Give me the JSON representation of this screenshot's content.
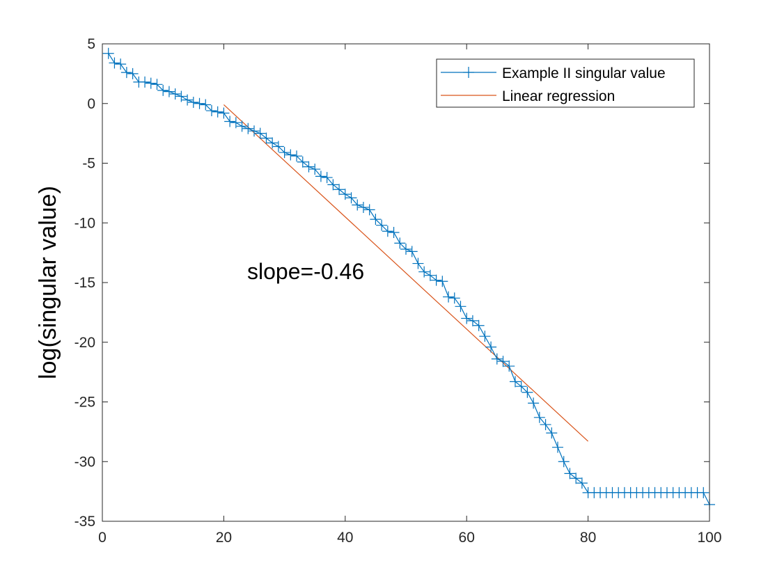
{
  "chart_data": {
    "type": "line",
    "title": "",
    "xlabel": "",
    "ylabel": "log(singular value)",
    "xlim": [
      0,
      100
    ],
    "ylim": [
      -35,
      5
    ],
    "xticks": [
      0,
      20,
      40,
      60,
      80,
      100
    ],
    "xtick_labels": [
      "0",
      "20",
      "40",
      "60",
      "80",
      "100"
    ],
    "yticks": [
      5,
      0,
      -5,
      -10,
      -15,
      -20,
      -25,
      -30,
      -35
    ],
    "ytick_labels": [
      "5",
      "0",
      "-5",
      "-10",
      "-15",
      "-20",
      "-25",
      "-30",
      "-35"
    ],
    "grid": false,
    "legend_position": "top-right",
    "annotation": {
      "text": "slope=-0.46",
      "x": 23.5,
      "y": -14.2
    },
    "series": [
      {
        "name": "Example II singular value",
        "color": "#0072BD",
        "marker": "+",
        "x": [
          1,
          2,
          3,
          4,
          5,
          6,
          7,
          8,
          9,
          10,
          11,
          12,
          13,
          14,
          15,
          16,
          17,
          18,
          19,
          20,
          21,
          22,
          23,
          24,
          25,
          26,
          27,
          28,
          29,
          30,
          31,
          32,
          33,
          34,
          35,
          36,
          37,
          38,
          39,
          40,
          41,
          42,
          43,
          44,
          45,
          46,
          47,
          48,
          49,
          50,
          51,
          52,
          53,
          54,
          55,
          56,
          57,
          58,
          59,
          60,
          61,
          62,
          63,
          64,
          65,
          66,
          67,
          68,
          69,
          70,
          71,
          72,
          73,
          74,
          75,
          76,
          77,
          78,
          79,
          80,
          81,
          82,
          83,
          84,
          85,
          86,
          87,
          88,
          89,
          90,
          91,
          92,
          93,
          94,
          95,
          96,
          97,
          98,
          99,
          100
        ],
        "y": [
          4.2,
          3.4,
          3.3,
          2.6,
          2.5,
          1.8,
          1.8,
          1.7,
          1.6,
          1.1,
          1.0,
          0.8,
          0.6,
          0.3,
          0.1,
          0.0,
          -0.1,
          -0.6,
          -0.7,
          -0.8,
          -1.5,
          -1.6,
          -1.9,
          -2.1,
          -2.3,
          -2.5,
          -2.9,
          -3.3,
          -3.6,
          -4.1,
          -4.3,
          -4.4,
          -4.9,
          -5.3,
          -5.5,
          -6.1,
          -6.2,
          -6.8,
          -7.2,
          -7.6,
          -7.9,
          -8.5,
          -8.7,
          -8.9,
          -9.7,
          -10.2,
          -10.7,
          -10.8,
          -11.7,
          -12.2,
          -12.4,
          -13.4,
          -14.1,
          -14.4,
          -14.8,
          -14.9,
          -16.2,
          -16.3,
          -17.0,
          -18.0,
          -18.2,
          -18.6,
          -19.5,
          -20.4,
          -21.4,
          -21.6,
          -22.0,
          -23.3,
          -23.7,
          -24.2,
          -25.1,
          -26.3,
          -26.9,
          -27.6,
          -28.8,
          -30.0,
          -31.0,
          -31.4,
          -31.8,
          -32.6,
          -32.6,
          -32.6,
          -32.6,
          -32.6,
          -32.6,
          -32.6,
          -32.6,
          -32.6,
          -32.6,
          -32.6,
          -32.6,
          -32.6,
          -32.6,
          -32.6,
          -32.6,
          -32.6,
          -32.6,
          -32.6,
          -32.6,
          -33.6
        ]
      },
      {
        "name": "Linear regression",
        "color": "#D95319",
        "marker": "none",
        "x": [
          20,
          80
        ],
        "y": [
          -0.1,
          -28.3
        ]
      }
    ]
  }
}
